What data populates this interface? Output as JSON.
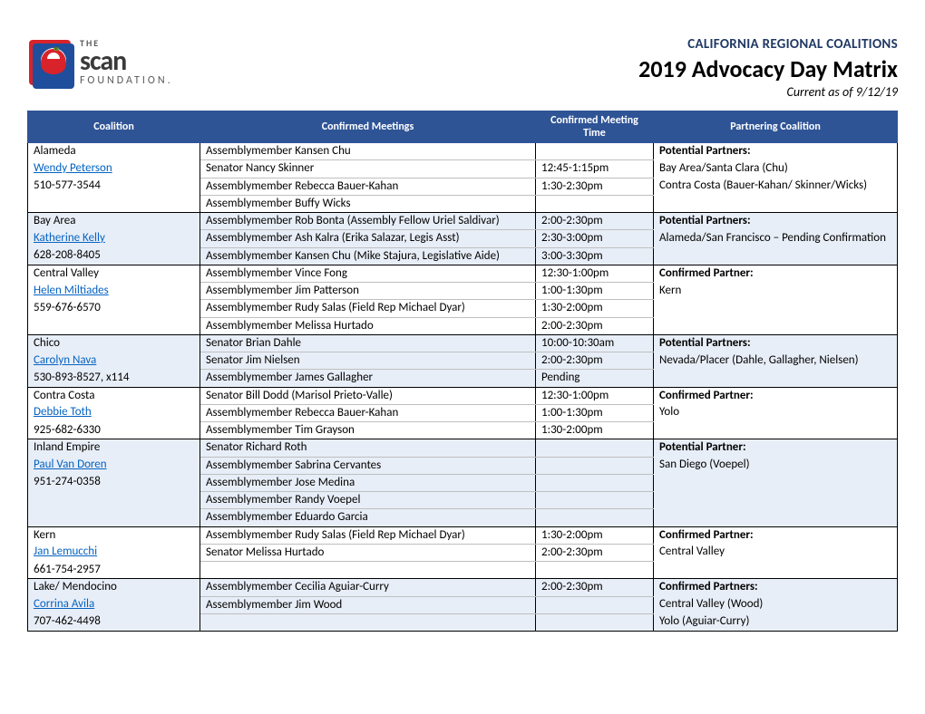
{
  "header": {
    "supertitle": "CALIFORNIA REGIONAL COALITIONS",
    "title": "2019 Advocacy Day Matrix",
    "subtitle": "Current as of 9/12/19"
  },
  "logo": {
    "the": "THE",
    "brand": "scan",
    "foundation": "FOUNDATION.",
    "red": "#d8232a",
    "blue": "#1f4e9c",
    "green": "#5aa02c"
  },
  "colors": {
    "header_bg": "#2f5496",
    "header_text": "#ffffff",
    "alt_row": "#e8eef7",
    "link": "#0563c1",
    "supertitle": "#1f3864"
  },
  "columns": [
    "Coalition",
    "Confirmed Meetings",
    "Confirmed Meeting Time",
    "Partnering Coalition"
  ],
  "groups": [
    {
      "alt": false,
      "coalition": {
        "name": "Alameda",
        "contact": "Wendy Peterson",
        "phone": "510-577-3544"
      },
      "partner_label": "Potential Partners:",
      "partner_lines": [
        "Bay Area/Santa Clara (Chu)",
        "Contra Costa (Bauer-Kahan/ Skinner/Wicks)"
      ],
      "rows": [
        {
          "meeting": "Assemblymember Kansen Chu",
          "time": ""
        },
        {
          "meeting": "Senator Nancy Skinner",
          "time": "12:45-1:15pm"
        },
        {
          "meeting": "Assemblymember Rebecca Bauer-Kahan",
          "time": "1:30-2:30pm"
        },
        {
          "meeting": "Assemblymember Buffy Wicks",
          "time": ""
        }
      ]
    },
    {
      "alt": true,
      "coalition": {
        "name": "Bay Area",
        "contact": "Katherine Kelly",
        "phone": "628-208-8405"
      },
      "partner_label": "Potential Partners:",
      "partner_lines": [
        "Alameda/San Francisco – Pending Confirmation"
      ],
      "rows": [
        {
          "meeting": "Assemblymember Rob Bonta (Assembly Fellow Uriel Saldivar)",
          "time": "2:00-2:30pm"
        },
        {
          "meeting": "Assemblymember Ash Kalra (Erika Salazar, Legis Asst)",
          "time": "2:30-3:00pm"
        },
        {
          "meeting": "Assemblymember Kansen Chu (Mike Stajura, Legislative Aide)",
          "time": "3:00-3:30pm"
        }
      ]
    },
    {
      "alt": false,
      "coalition": {
        "name": "Central Valley",
        "contact": "Helen Miltiades",
        "phone": "559-676-6570"
      },
      "partner_label": "Confirmed Partner:",
      "partner_lines": [
        "Kern"
      ],
      "rows": [
        {
          "meeting": "Assemblymember Vince Fong",
          "time": "12:30-1:00pm"
        },
        {
          "meeting": "Assemblymember Jim Patterson",
          "time": "1:00-1:30pm"
        },
        {
          "meeting": "Assemblymember Rudy Salas (Field Rep Michael Dyar)",
          "time": "1:30-2:00pm"
        },
        {
          "meeting": "Assemblymember Melissa Hurtado",
          "time": "2:00-2:30pm"
        }
      ]
    },
    {
      "alt": true,
      "coalition": {
        "name": "Chico",
        "contact": "Carolyn Nava",
        "phone": "530-893-8527, x114"
      },
      "partner_label": "Potential Partners:",
      "partner_lines": [
        "Nevada/Placer (Dahle, Gallagher, Nielsen)"
      ],
      "rows": [
        {
          "meeting": "Senator Brian Dahle",
          "time": "10:00-10:30am"
        },
        {
          "meeting": "Senator Jim Nielsen",
          "time": "2:00-2:30pm"
        },
        {
          "meeting": "Assemblymember James Gallagher",
          "time": "Pending"
        }
      ]
    },
    {
      "alt": false,
      "coalition": {
        "name": "Contra Costa",
        "contact": "Debbie Toth",
        "phone": "925-682-6330"
      },
      "partner_label": "Confirmed Partner:",
      "partner_lines": [
        "Yolo"
      ],
      "rows": [
        {
          "meeting": "Senator Bill Dodd (Marisol Prieto-Valle)",
          "time": "12:30-1:00pm"
        },
        {
          "meeting": "Assemblymember Rebecca Bauer-Kahan",
          "time": "1:00-1:30pm"
        },
        {
          "meeting": "Assemblymember Tim Grayson",
          "time": "1:30-2:00pm"
        }
      ]
    },
    {
      "alt": true,
      "coalition": {
        "name": "Inland Empire",
        "contact": "Paul Van Doren",
        "phone": "951-274-0358"
      },
      "partner_label": "Potential Partner:",
      "partner_lines": [
        "San Diego (Voepel)"
      ],
      "rows": [
        {
          "meeting": "Senator Richard Roth",
          "time": ""
        },
        {
          "meeting": "Assemblymember Sabrina Cervantes",
          "time": ""
        },
        {
          "meeting": "Assemblymember Jose Medina",
          "time": ""
        },
        {
          "meeting": "Assemblymember Randy Voepel",
          "time": ""
        },
        {
          "meeting": "Assemblymember Eduardo Garcia",
          "time": ""
        }
      ]
    },
    {
      "alt": false,
      "coalition": {
        "name": "Kern",
        "contact": "Jan Lemucchi",
        "phone": "661-754-2957"
      },
      "partner_label": "Confirmed Partner:",
      "partner_lines": [
        "Central Valley"
      ],
      "rows": [
        {
          "meeting": "Assemblymember Rudy Salas (Field Rep Michael Dyar)",
          "time": "1:30-2:00pm"
        },
        {
          "meeting": "Senator Melissa Hurtado",
          "time": "2:00-2:30pm"
        },
        {
          "meeting": "",
          "time": ""
        }
      ]
    },
    {
      "alt": true,
      "coalition": {
        "name": "Lake/ Mendocino",
        "contact": "Corrina Avila",
        "phone": "707-462-4498"
      },
      "partner_label": "Confirmed Partners:",
      "partner_lines": [
        "Central Valley (Wood)",
        "Yolo (Aguiar-Curry)"
      ],
      "rows": [
        {
          "meeting": "Assemblymember Cecilia Aguiar-Curry",
          "time": "2:00-2:30pm"
        },
        {
          "meeting": "Assemblymember Jim Wood",
          "time": ""
        },
        {
          "meeting": "",
          "time": ""
        }
      ]
    }
  ]
}
